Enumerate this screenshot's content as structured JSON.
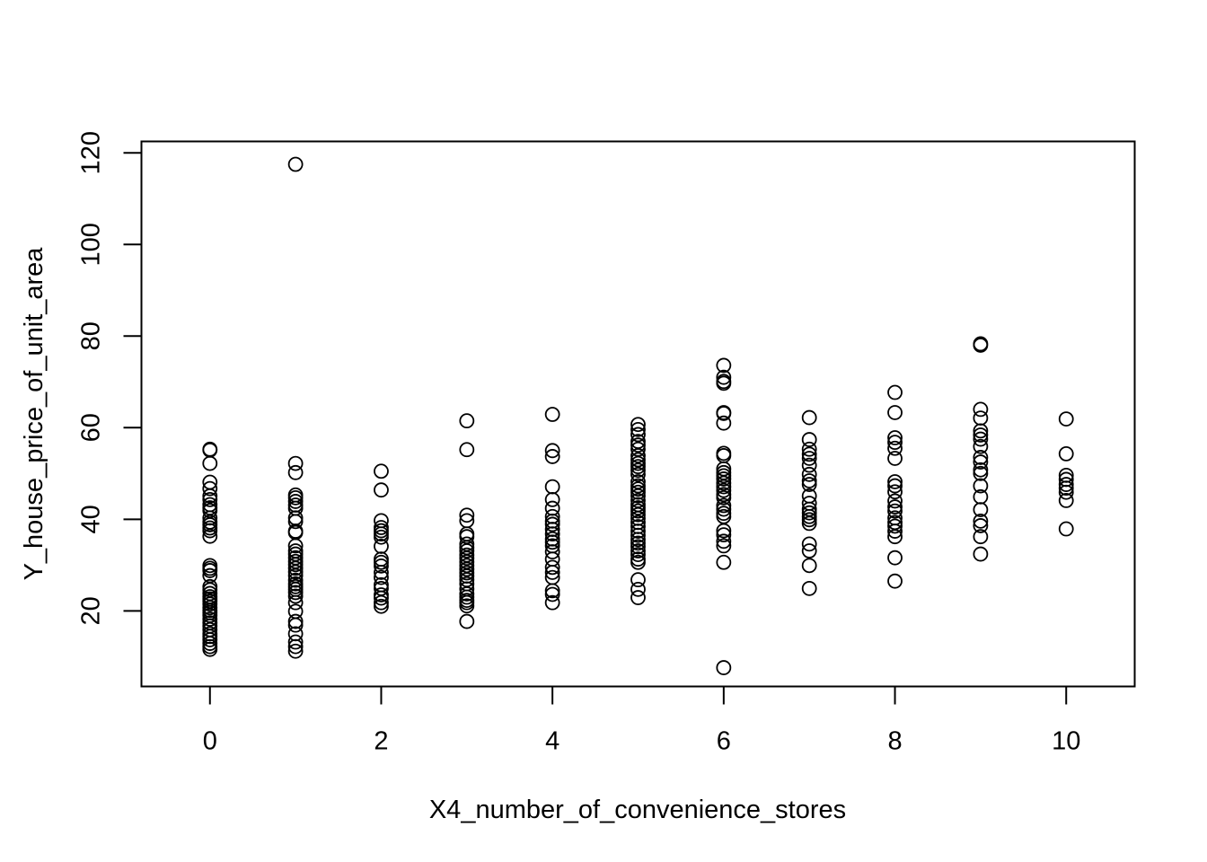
{
  "chart_data": {
    "type": "scatter",
    "title": "",
    "xlabel": "X4_number_of_convenience_stores",
    "ylabel": "Y_house_price_of_unit_area",
    "xlim": [
      -0.8,
      10.8
    ],
    "ylim": [
      3.5,
      122.5
    ],
    "xticks": [
      0,
      2,
      4,
      6,
      8,
      10
    ],
    "yticks": [
      20,
      40,
      60,
      80,
      100,
      120
    ],
    "grid": false,
    "marker": "open-circle",
    "color": "#000000",
    "series": [
      {
        "points": [
          [
            0,
            55.1
          ],
          [
            0,
            55.3
          ],
          [
            0,
            52.2
          ],
          [
            0,
            48.1
          ],
          [
            0,
            46.7
          ],
          [
            0,
            45.1
          ],
          [
            0,
            44.3
          ],
          [
            0,
            43.2
          ],
          [
            0,
            42.5
          ],
          [
            0,
            41.9
          ],
          [
            0,
            40.3
          ],
          [
            0,
            39.4
          ],
          [
            0,
            38.8
          ],
          [
            0,
            38.1
          ],
          [
            0,
            37.5
          ],
          [
            0,
            36.3
          ],
          [
            0,
            29.9
          ],
          [
            0,
            29.3
          ],
          [
            0,
            28.8
          ],
          [
            0,
            27.7
          ],
          [
            0,
            25.3
          ],
          [
            0,
            24.6
          ],
          [
            0,
            23.8
          ],
          [
            0,
            23.1
          ],
          [
            0,
            22.6
          ],
          [
            0,
            22.1
          ],
          [
            0,
            21.5
          ],
          [
            0,
            20.7
          ],
          [
            0,
            20.1
          ],
          [
            0,
            19.6
          ],
          [
            0,
            19.0
          ],
          [
            0,
            18.2
          ],
          [
            0,
            17.4
          ],
          [
            0,
            16.7
          ],
          [
            0,
            15.9
          ],
          [
            0,
            15.0
          ],
          [
            0,
            14.4
          ],
          [
            0,
            13.7
          ],
          [
            0,
            12.9
          ],
          [
            0,
            12.2
          ],
          [
            0,
            11.6
          ],
          [
            1,
            117.5
          ],
          [
            1,
            52.2
          ],
          [
            1,
            50.2
          ],
          [
            1,
            45.3
          ],
          [
            1,
            44.7
          ],
          [
            1,
            43.9
          ],
          [
            1,
            43.1
          ],
          [
            1,
            42.4
          ],
          [
            1,
            40.3
          ],
          [
            1,
            39.5
          ],
          [
            1,
            37.4
          ],
          [
            1,
            37.1
          ],
          [
            1,
            34.2
          ],
          [
            1,
            33.1
          ],
          [
            1,
            32.4
          ],
          [
            1,
            31.6
          ],
          [
            1,
            30.8
          ],
          [
            1,
            30.1
          ],
          [
            1,
            29.3
          ],
          [
            1,
            28.5
          ],
          [
            1,
            27.7
          ],
          [
            1,
            26.7
          ],
          [
            1,
            25.9
          ],
          [
            1,
            25.3
          ],
          [
            1,
            24.7
          ],
          [
            1,
            24.0
          ],
          [
            1,
            23.2
          ],
          [
            1,
            21.8
          ],
          [
            1,
            19.9
          ],
          [
            1,
            17.7
          ],
          [
            1,
            16.9
          ],
          [
            1,
            15.0
          ],
          [
            1,
            13.2
          ],
          [
            1,
            12.2
          ],
          [
            1,
            11.2
          ],
          [
            2,
            50.5
          ],
          [
            2,
            46.4
          ],
          [
            2,
            39.7
          ],
          [
            2,
            38.2
          ],
          [
            2,
            37.5
          ],
          [
            2,
            36.8
          ],
          [
            2,
            36.1
          ],
          [
            2,
            34.1
          ],
          [
            2,
            31.3
          ],
          [
            2,
            30.6
          ],
          [
            2,
            29.8
          ],
          [
            2,
            28.4
          ],
          [
            2,
            27.3
          ],
          [
            2,
            25.7
          ],
          [
            2,
            24.9
          ],
          [
            2,
            23.5
          ],
          [
            2,
            22.8
          ],
          [
            2,
            21.8
          ],
          [
            2,
            21.0
          ],
          [
            3,
            61.5
          ],
          [
            3,
            55.2
          ],
          [
            3,
            40.9
          ],
          [
            3,
            39.7
          ],
          [
            3,
            36.8
          ],
          [
            3,
            36.2
          ],
          [
            3,
            34.6
          ],
          [
            3,
            33.8
          ],
          [
            3,
            33.1
          ],
          [
            3,
            32.2
          ],
          [
            3,
            31.5
          ],
          [
            3,
            30.7
          ],
          [
            3,
            29.9
          ],
          [
            3,
            29.1
          ],
          [
            3,
            28.3
          ],
          [
            3,
            27.6
          ],
          [
            3,
            26.8
          ],
          [
            3,
            25.9
          ],
          [
            3,
            24.8
          ],
          [
            3,
            23.7
          ],
          [
            3,
            23.0
          ],
          [
            3,
            22.3
          ],
          [
            3,
            21.8
          ],
          [
            3,
            21.1
          ],
          [
            3,
            17.7
          ],
          [
            4,
            62.9
          ],
          [
            4,
            55.0
          ],
          [
            4,
            53.7
          ],
          [
            4,
            47.1
          ],
          [
            4,
            44.3
          ],
          [
            4,
            42.4
          ],
          [
            4,
            40.6
          ],
          [
            4,
            39.6
          ],
          [
            4,
            38.9
          ],
          [
            4,
            37.8
          ],
          [
            4,
            36.8
          ],
          [
            4,
            35.7
          ],
          [
            4,
            35.0
          ],
          [
            4,
            34.2
          ],
          [
            4,
            32.9
          ],
          [
            4,
            31.3
          ],
          [
            4,
            29.5
          ],
          [
            4,
            28.4
          ],
          [
            4,
            27.3
          ],
          [
            4,
            24.4
          ],
          [
            4,
            23.6
          ],
          [
            4,
            21.8
          ],
          [
            5,
            60.7
          ],
          [
            5,
            59.6
          ],
          [
            5,
            58.5
          ],
          [
            5,
            57.0
          ],
          [
            5,
            56.2
          ],
          [
            5,
            55.3
          ],
          [
            5,
            53.9
          ],
          [
            5,
            53.0
          ],
          [
            5,
            52.2
          ],
          [
            5,
            51.5
          ],
          [
            5,
            50.7
          ],
          [
            5,
            49.8
          ],
          [
            5,
            48.2
          ],
          [
            5,
            47.3
          ],
          [
            5,
            46.6
          ],
          [
            5,
            45.9
          ],
          [
            5,
            45.1
          ],
          [
            5,
            44.1
          ],
          [
            5,
            43.2
          ],
          [
            5,
            42.5
          ],
          [
            5,
            41.8
          ],
          [
            5,
            41.0
          ],
          [
            5,
            40.2
          ],
          [
            5,
            39.3
          ],
          [
            5,
            38.4
          ],
          [
            5,
            37.4
          ],
          [
            5,
            36.5
          ],
          [
            5,
            35.6
          ],
          [
            5,
            34.8
          ],
          [
            5,
            34.0
          ],
          [
            5,
            33.1
          ],
          [
            5,
            32.3
          ],
          [
            5,
            31.3
          ],
          [
            5,
            30.6
          ],
          [
            5,
            26.8
          ],
          [
            5,
            24.7
          ],
          [
            5,
            22.9
          ],
          [
            6,
            73.6
          ],
          [
            6,
            71.0
          ],
          [
            6,
            70.1
          ],
          [
            6,
            69.7
          ],
          [
            6,
            63.3
          ],
          [
            6,
            63.1
          ],
          [
            6,
            61.0
          ],
          [
            6,
            54.4
          ],
          [
            6,
            53.9
          ],
          [
            6,
            51.0
          ],
          [
            6,
            50.2
          ],
          [
            6,
            49.5
          ],
          [
            6,
            48.8
          ],
          [
            6,
            47.9
          ],
          [
            6,
            47.1
          ],
          [
            6,
            46.3
          ],
          [
            6,
            45.4
          ],
          [
            6,
            44.7
          ],
          [
            6,
            43.0
          ],
          [
            6,
            42.2
          ],
          [
            6,
            41.3
          ],
          [
            6,
            40.6
          ],
          [
            6,
            37.5
          ],
          [
            6,
            36.6
          ],
          [
            6,
            35.2
          ],
          [
            6,
            34.2
          ],
          [
            6,
            30.6
          ],
          [
            6,
            7.6
          ],
          [
            7,
            62.2
          ],
          [
            7,
            57.4
          ],
          [
            7,
            55.3
          ],
          [
            7,
            54.2
          ],
          [
            7,
            53.3
          ],
          [
            7,
            51.8
          ],
          [
            7,
            49.8
          ],
          [
            7,
            48.4
          ],
          [
            7,
            47.6
          ],
          [
            7,
            45.1
          ],
          [
            7,
            43.5
          ],
          [
            7,
            42.2
          ],
          [
            7,
            41.4
          ],
          [
            7,
            40.6
          ],
          [
            7,
            39.9
          ],
          [
            7,
            39.1
          ],
          [
            7,
            34.6
          ],
          [
            7,
            33.1
          ],
          [
            7,
            29.9
          ],
          [
            7,
            24.9
          ],
          [
            8,
            67.7
          ],
          [
            8,
            63.3
          ],
          [
            8,
            57.8
          ],
          [
            8,
            56.8
          ],
          [
            8,
            55.5
          ],
          [
            8,
            53.3
          ],
          [
            8,
            48.2
          ],
          [
            8,
            47.3
          ],
          [
            8,
            46.0
          ],
          [
            8,
            44.0
          ],
          [
            8,
            42.7
          ],
          [
            8,
            41.8
          ],
          [
            8,
            40.3
          ],
          [
            8,
            39.3
          ],
          [
            8,
            38.5
          ],
          [
            8,
            37.4
          ],
          [
            8,
            36.2
          ],
          [
            8,
            31.6
          ],
          [
            8,
            26.5
          ],
          [
            9,
            78.3
          ],
          [
            9,
            78.0
          ],
          [
            9,
            64.0
          ],
          [
            9,
            62.1
          ],
          [
            9,
            59.3
          ],
          [
            9,
            58.4
          ],
          [
            9,
            57.5
          ],
          [
            9,
            55.9
          ],
          [
            9,
            53.5
          ],
          [
            9,
            52.5
          ],
          [
            9,
            50.8
          ],
          [
            9,
            50.0
          ],
          [
            9,
            47.3
          ],
          [
            9,
            44.9
          ],
          [
            9,
            42.1
          ],
          [
            9,
            39.6
          ],
          [
            9,
            38.6
          ],
          [
            9,
            36.2
          ],
          [
            9,
            32.4
          ],
          [
            10,
            61.9
          ],
          [
            10,
            54.3
          ],
          [
            10,
            49.6
          ],
          [
            10,
            48.7
          ],
          [
            10,
            47.6
          ],
          [
            10,
            46.8
          ],
          [
            10,
            45.9
          ],
          [
            10,
            44.1
          ],
          [
            10,
            37.9
          ]
        ]
      }
    ]
  }
}
